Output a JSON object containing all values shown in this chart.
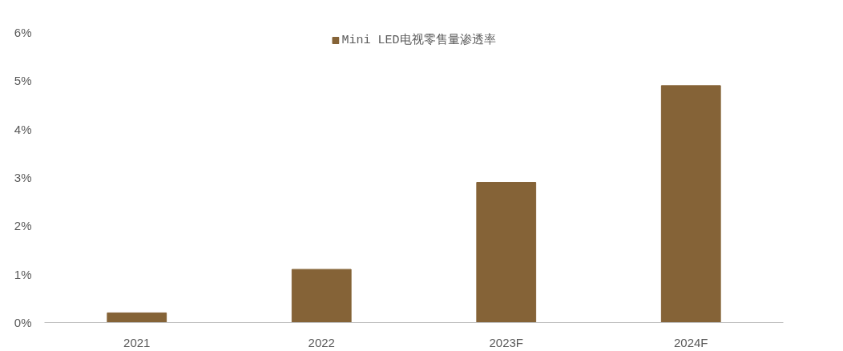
{
  "chart_data": {
    "type": "bar",
    "categories": [
      "2021",
      "2022",
      "2023F",
      "2024F"
    ],
    "series": [
      {
        "name": "Mini LED电视零售量渗透率",
        "color": "#856337",
        "values": [
          0.2,
          1.1,
          2.9,
          4.9
        ]
      }
    ],
    "ylim": [
      0,
      6
    ],
    "yticks": [
      {
        "value": 0,
        "label": "0%"
      },
      {
        "value": 1,
        "label": "1%"
      },
      {
        "value": 2,
        "label": "2%"
      },
      {
        "value": 3,
        "label": "3%"
      },
      {
        "value": 4,
        "label": "4%"
      },
      {
        "value": 5,
        "label": "5%"
      },
      {
        "value": 6,
        "label": "6%"
      }
    ],
    "grid": false,
    "legend": "top"
  }
}
